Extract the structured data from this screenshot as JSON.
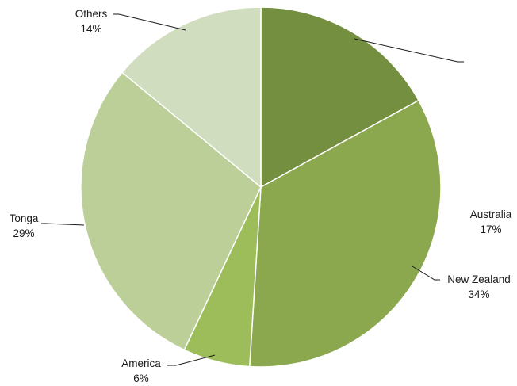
{
  "chart_data": {
    "type": "pie",
    "title": "",
    "legend": "none",
    "slices": [
      {
        "name": "Australia",
        "value": 17,
        "label": "17%",
        "color": "#758f40"
      },
      {
        "name": "New Zealand",
        "value": 34,
        "label": "34%",
        "color": "#8ba84e"
      },
      {
        "name": "America",
        "value": 6,
        "label": "6%",
        "color": "#9dbd5b"
      },
      {
        "name": "Tonga",
        "value": 29,
        "label": "29%",
        "color": "#bccf99"
      },
      {
        "name": "Others",
        "value": 14,
        "label": "14%",
        "color": "#d1ddbf"
      }
    ]
  }
}
